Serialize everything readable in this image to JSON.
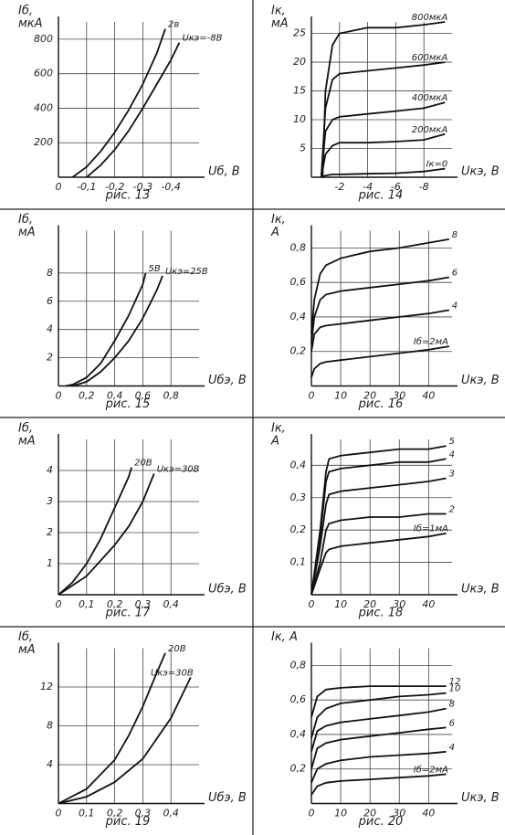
{
  "chart_data": [
    {
      "type": "line",
      "caption": "рис. 13",
      "ylabel": [
        "Iб,",
        "мкА"
      ],
      "xlabel": "Uб, В",
      "grid": true,
      "color": "#111",
      "xlim": [
        0,
        -0.5
      ],
      "ylim": [
        0,
        900
      ],
      "xticks": [
        0,
        {
          "value": -0.1,
          "label": "-0,1"
        },
        {
          "value": -0.2,
          "label": "-0,2"
        },
        {
          "value": -0.3,
          "label": "-0,3"
        },
        {
          "value": -0.4,
          "label": "-0,4"
        }
      ],
      "yticks": [
        200,
        400,
        600,
        800
      ],
      "series": [
        {
          "name": "2в",
          "x": [
            -0.05,
            -0.1,
            -0.15,
            -0.2,
            -0.25,
            -0.3,
            -0.35,
            -0.38
          ],
          "values": [
            0,
            60,
            150,
            260,
            390,
            540,
            720,
            860
          ]
        },
        {
          "name": "Uкэ=-8В",
          "x": [
            -0.1,
            -0.15,
            -0.2,
            -0.25,
            -0.3,
            -0.35,
            -0.4,
            -0.43
          ],
          "values": [
            0,
            70,
            160,
            270,
            400,
            540,
            680,
            780
          ]
        }
      ]
    },
    {
      "type": "line",
      "caption": "рис. 14",
      "ylabel": [
        "Iк,",
        "мА"
      ],
      "xlabel": "Uкэ, В",
      "grid": true,
      "color": "#111",
      "xlim": [
        0,
        -10
      ],
      "ylim": [
        0,
        27
      ],
      "xticks": [
        -2,
        -4,
        -6,
        -8
      ],
      "yticks": [
        5,
        10,
        15,
        20,
        25
      ],
      "series": [
        {
          "name": "800мкА",
          "x": [
            -0.8,
            -1,
            -1.5,
            -2,
            -4,
            -6,
            -8,
            -9.5
          ],
          "values": [
            0,
            15,
            23,
            25,
            26,
            26,
            26.5,
            27
          ]
        },
        {
          "name": "600мкА",
          "x": [
            -0.7,
            -1,
            -1.5,
            -2,
            -4,
            -6,
            -8,
            -9.5
          ],
          "values": [
            0,
            12,
            17,
            18,
            18.5,
            19,
            19.5,
            20
          ]
        },
        {
          "name": "400мкА",
          "x": [
            -0.7,
            -1,
            -1.5,
            -2,
            -4,
            -6,
            -8,
            -9.5
          ],
          "values": [
            0,
            8,
            10,
            10.5,
            11,
            11.5,
            12,
            13
          ]
        },
        {
          "name": "200мкА",
          "x": [
            -0.7,
            -1,
            -1.5,
            -2,
            -4,
            -6,
            -8,
            -9.5
          ],
          "values": [
            0,
            4,
            5.5,
            6,
            6,
            6.2,
            6.5,
            7.5
          ]
        },
        {
          "name": "Iк=0",
          "x": [
            -0.7,
            -1,
            -1.5,
            -2,
            -4,
            -6,
            -8,
            -9.5
          ],
          "values": [
            0,
            0.3,
            0.5,
            0.5,
            0.6,
            0.7,
            1,
            1.5
          ]
        }
      ]
    },
    {
      "type": "line",
      "caption": "рис. 15",
      "ylabel": [
        "Iб,",
        "мА"
      ],
      "xlabel": "Uбэ, В",
      "grid": true,
      "color": "#111",
      "xlim": [
        0,
        1
      ],
      "ylim": [
        0,
        11
      ],
      "xticks": [
        0,
        {
          "value": 0.2,
          "label": "0,2"
        },
        {
          "value": 0.4,
          "label": "0,4"
        },
        {
          "value": 0.6,
          "label": "0,6"
        },
        {
          "value": 0.8,
          "label": "0,8"
        }
      ],
      "yticks": [
        2,
        4,
        6,
        8
      ],
      "series": [
        {
          "name": "5В",
          "x": [
            0.05,
            0.1,
            0.2,
            0.3,
            0.4,
            0.5,
            0.6,
            0.62
          ],
          "values": [
            0,
            0.1,
            0.6,
            1.6,
            3.2,
            5,
            7.2,
            8
          ]
        },
        {
          "name": "Uкэ=25В",
          "x": [
            0.1,
            0.2,
            0.3,
            0.4,
            0.5,
            0.6,
            0.7,
            0.74
          ],
          "values": [
            0,
            0.3,
            1,
            2,
            3.2,
            4.8,
            6.8,
            7.8
          ]
        }
      ]
    },
    {
      "type": "line",
      "caption": "рис. 16",
      "ylabel": [
        "Iк,",
        "А"
      ],
      "xlabel": "Uкэ, В",
      "grid": true,
      "color": "#111",
      "xlim": [
        0,
        48
      ],
      "ylim": [
        0,
        0.9
      ],
      "xticks": [
        0,
        10,
        20,
        30,
        40
      ],
      "yticks": [
        {
          "value": 0.2,
          "label": "0,2"
        },
        {
          "value": 0.4,
          "label": "0,4"
        },
        {
          "value": 0.6,
          "label": "0,6"
        },
        {
          "value": 0.8,
          "label": "0,8"
        }
      ],
      "series": [
        {
          "name": "8",
          "x": [
            0,
            1,
            3,
            5,
            10,
            20,
            30,
            40,
            47
          ],
          "values": [
            0.3,
            0.5,
            0.65,
            0.7,
            0.74,
            0.78,
            0.8,
            0.83,
            0.85
          ]
        },
        {
          "name": "6",
          "x": [
            0,
            1,
            3,
            5,
            10,
            20,
            30,
            40,
            47
          ],
          "values": [
            0.25,
            0.4,
            0.5,
            0.53,
            0.55,
            0.57,
            0.59,
            0.61,
            0.63
          ]
        },
        {
          "name": "4",
          "x": [
            0,
            1,
            3,
            5,
            10,
            20,
            30,
            40,
            47
          ],
          "values": [
            0.2,
            0.3,
            0.34,
            0.35,
            0.36,
            0.38,
            0.4,
            0.42,
            0.44
          ]
        },
        {
          "name": "Iб=2мА",
          "x": [
            0,
            1,
            3,
            5,
            10,
            20,
            30,
            40,
            47
          ],
          "values": [
            0.05,
            0.1,
            0.13,
            0.14,
            0.15,
            0.17,
            0.19,
            0.21,
            0.23
          ]
        }
      ]
    },
    {
      "type": "line",
      "caption": "рис. 17",
      "ylabel": [
        "Iб,",
        "мА"
      ],
      "xlabel": "Uбэ, В",
      "grid": true,
      "color": "#111",
      "xlim": [
        0,
        0.5
      ],
      "ylim": [
        0,
        5
      ],
      "xticks": [
        0,
        {
          "value": 0.1,
          "label": "0,1"
        },
        {
          "value": 0.2,
          "label": "0,2"
        },
        {
          "value": 0.3,
          "label": "0,3"
        },
        {
          "value": 0.4,
          "label": "0,4"
        }
      ],
      "yticks": [
        1,
        2,
        3,
        4
      ],
      "series": [
        {
          "name": "20В",
          "x": [
            0,
            0.05,
            0.1,
            0.15,
            0.2,
            0.25,
            0.26
          ],
          "values": [
            0,
            0.4,
            1,
            1.8,
            2.8,
            3.8,
            4.1
          ]
        },
        {
          "name": "Uкэ=30В",
          "x": [
            0,
            0.1,
            0.15,
            0.2,
            0.25,
            0.3,
            0.34
          ],
          "values": [
            0,
            0.6,
            1.1,
            1.6,
            2.2,
            3,
            3.9
          ]
        }
      ]
    },
    {
      "type": "line",
      "caption": "рис. 18",
      "ylabel": [
        "Iк,",
        "А"
      ],
      "xlabel": "Uкэ, В",
      "grid": true,
      "color": "#111",
      "xlim": [
        0,
        48
      ],
      "ylim": [
        0,
        0.48
      ],
      "xticks": [
        0,
        10,
        20,
        30,
        40
      ],
      "yticks": [
        {
          "value": 0.1,
          "label": "0,1"
        },
        {
          "value": 0.2,
          "label": "0,2"
        },
        {
          "value": 0.3,
          "label": "0,3"
        },
        {
          "value": 0.4,
          "label": "0,4"
        }
      ],
      "series": [
        {
          "name": "5",
          "x": [
            0,
            3,
            5,
            6,
            10,
            20,
            30,
            40,
            46
          ],
          "values": [
            0,
            0.2,
            0.38,
            0.42,
            0.43,
            0.44,
            0.45,
            0.45,
            0.46
          ]
        },
        {
          "name": "4",
          "x": [
            0,
            3,
            5,
            6,
            10,
            20,
            30,
            40,
            46
          ],
          "values": [
            0,
            0.18,
            0.35,
            0.38,
            0.39,
            0.4,
            0.41,
            0.41,
            0.42
          ]
        },
        {
          "name": "3",
          "x": [
            0,
            3,
            5,
            6,
            10,
            20,
            30,
            40,
            46
          ],
          "values": [
            0,
            0.15,
            0.28,
            0.31,
            0.32,
            0.33,
            0.34,
            0.35,
            0.36
          ]
        },
        {
          "name": "2",
          "x": [
            0,
            3,
            5,
            6,
            10,
            20,
            30,
            40,
            46
          ],
          "values": [
            0,
            0.1,
            0.2,
            0.22,
            0.23,
            0.24,
            0.24,
            0.25,
            0.25
          ]
        },
        {
          "name": "Iб=1мА",
          "x": [
            0,
            3,
            5,
            6,
            10,
            20,
            30,
            40,
            46
          ],
          "values": [
            0,
            0.08,
            0.13,
            0.14,
            0.15,
            0.16,
            0.17,
            0.18,
            0.19
          ]
        }
      ]
    },
    {
      "type": "line",
      "caption": "рис. 19",
      "ylabel": [
        "Iб,",
        "мА"
      ],
      "xlabel": "Uбэ, В",
      "grid": true,
      "color": "#111",
      "xlim": [
        0,
        0.5
      ],
      "ylim": [
        0,
        16
      ],
      "xticks": [
        0,
        {
          "value": 0.1,
          "label": "0,1"
        },
        {
          "value": 0.2,
          "label": "0,2"
        },
        {
          "value": 0.3,
          "label": "0,3"
        },
        {
          "value": 0.4,
          "label": "0,4"
        }
      ],
      "yticks": [
        4,
        8,
        12
      ],
      "series": [
        {
          "name": "20В",
          "x": [
            0,
            0.1,
            0.2,
            0.25,
            0.3,
            0.35,
            0.38
          ],
          "values": [
            0,
            1.5,
            4.5,
            7,
            10,
            13.5,
            15.5
          ]
        },
        {
          "name": "Uкэ=30В",
          "x": [
            0,
            0.1,
            0.2,
            0.3,
            0.4,
            0.47
          ],
          "values": [
            0,
            0.7,
            2.2,
            4.6,
            8.8,
            13
          ]
        }
      ]
    },
    {
      "type": "line",
      "caption": "рис. 20",
      "ylabel": [
        "Iк, А"
      ],
      "xlabel": "Uкэ, В",
      "grid": true,
      "color": "#111",
      "xlim": [
        0,
        48
      ],
      "ylim": [
        0,
        0.9
      ],
      "xticks": [
        0,
        10,
        20,
        30,
        40
      ],
      "yticks": [
        {
          "value": 0.2,
          "label": "0,2"
        },
        {
          "value": 0.4,
          "label": "0,4"
        },
        {
          "value": 0.6,
          "label": "0,6"
        },
        {
          "value": 0.8,
          "label": "0,8"
        }
      ],
      "series": [
        {
          "name": "12",
          "x": [
            0,
            2,
            5,
            10,
            20,
            30,
            40,
            46
          ],
          "values": [
            0.5,
            0.62,
            0.66,
            0.67,
            0.68,
            0.68,
            0.68,
            0.68
          ]
        },
        {
          "name": "10",
          "x": [
            0,
            2,
            5,
            10,
            20,
            30,
            40,
            46
          ],
          "values": [
            0.38,
            0.5,
            0.55,
            0.58,
            0.6,
            0.62,
            0.63,
            0.64
          ]
        },
        {
          "name": "8",
          "x": [
            0,
            2,
            5,
            10,
            20,
            30,
            40,
            46
          ],
          "values": [
            0.3,
            0.42,
            0.45,
            0.47,
            0.49,
            0.51,
            0.53,
            0.55
          ]
        },
        {
          "name": "6",
          "x": [
            0,
            2,
            5,
            10,
            20,
            30,
            40,
            46
          ],
          "values": [
            0.2,
            0.32,
            0.35,
            0.37,
            0.39,
            0.41,
            0.43,
            0.44
          ]
        },
        {
          "name": "4",
          "x": [
            0,
            2,
            5,
            10,
            20,
            30,
            40,
            46
          ],
          "values": [
            0.12,
            0.2,
            0.23,
            0.25,
            0.27,
            0.28,
            0.29,
            0.3
          ]
        },
        {
          "name": "Iб=2мА",
          "x": [
            0,
            2,
            5,
            10,
            20,
            30,
            40,
            46
          ],
          "values": [
            0.05,
            0.1,
            0.12,
            0.13,
            0.14,
            0.15,
            0.16,
            0.17
          ]
        }
      ]
    }
  ]
}
